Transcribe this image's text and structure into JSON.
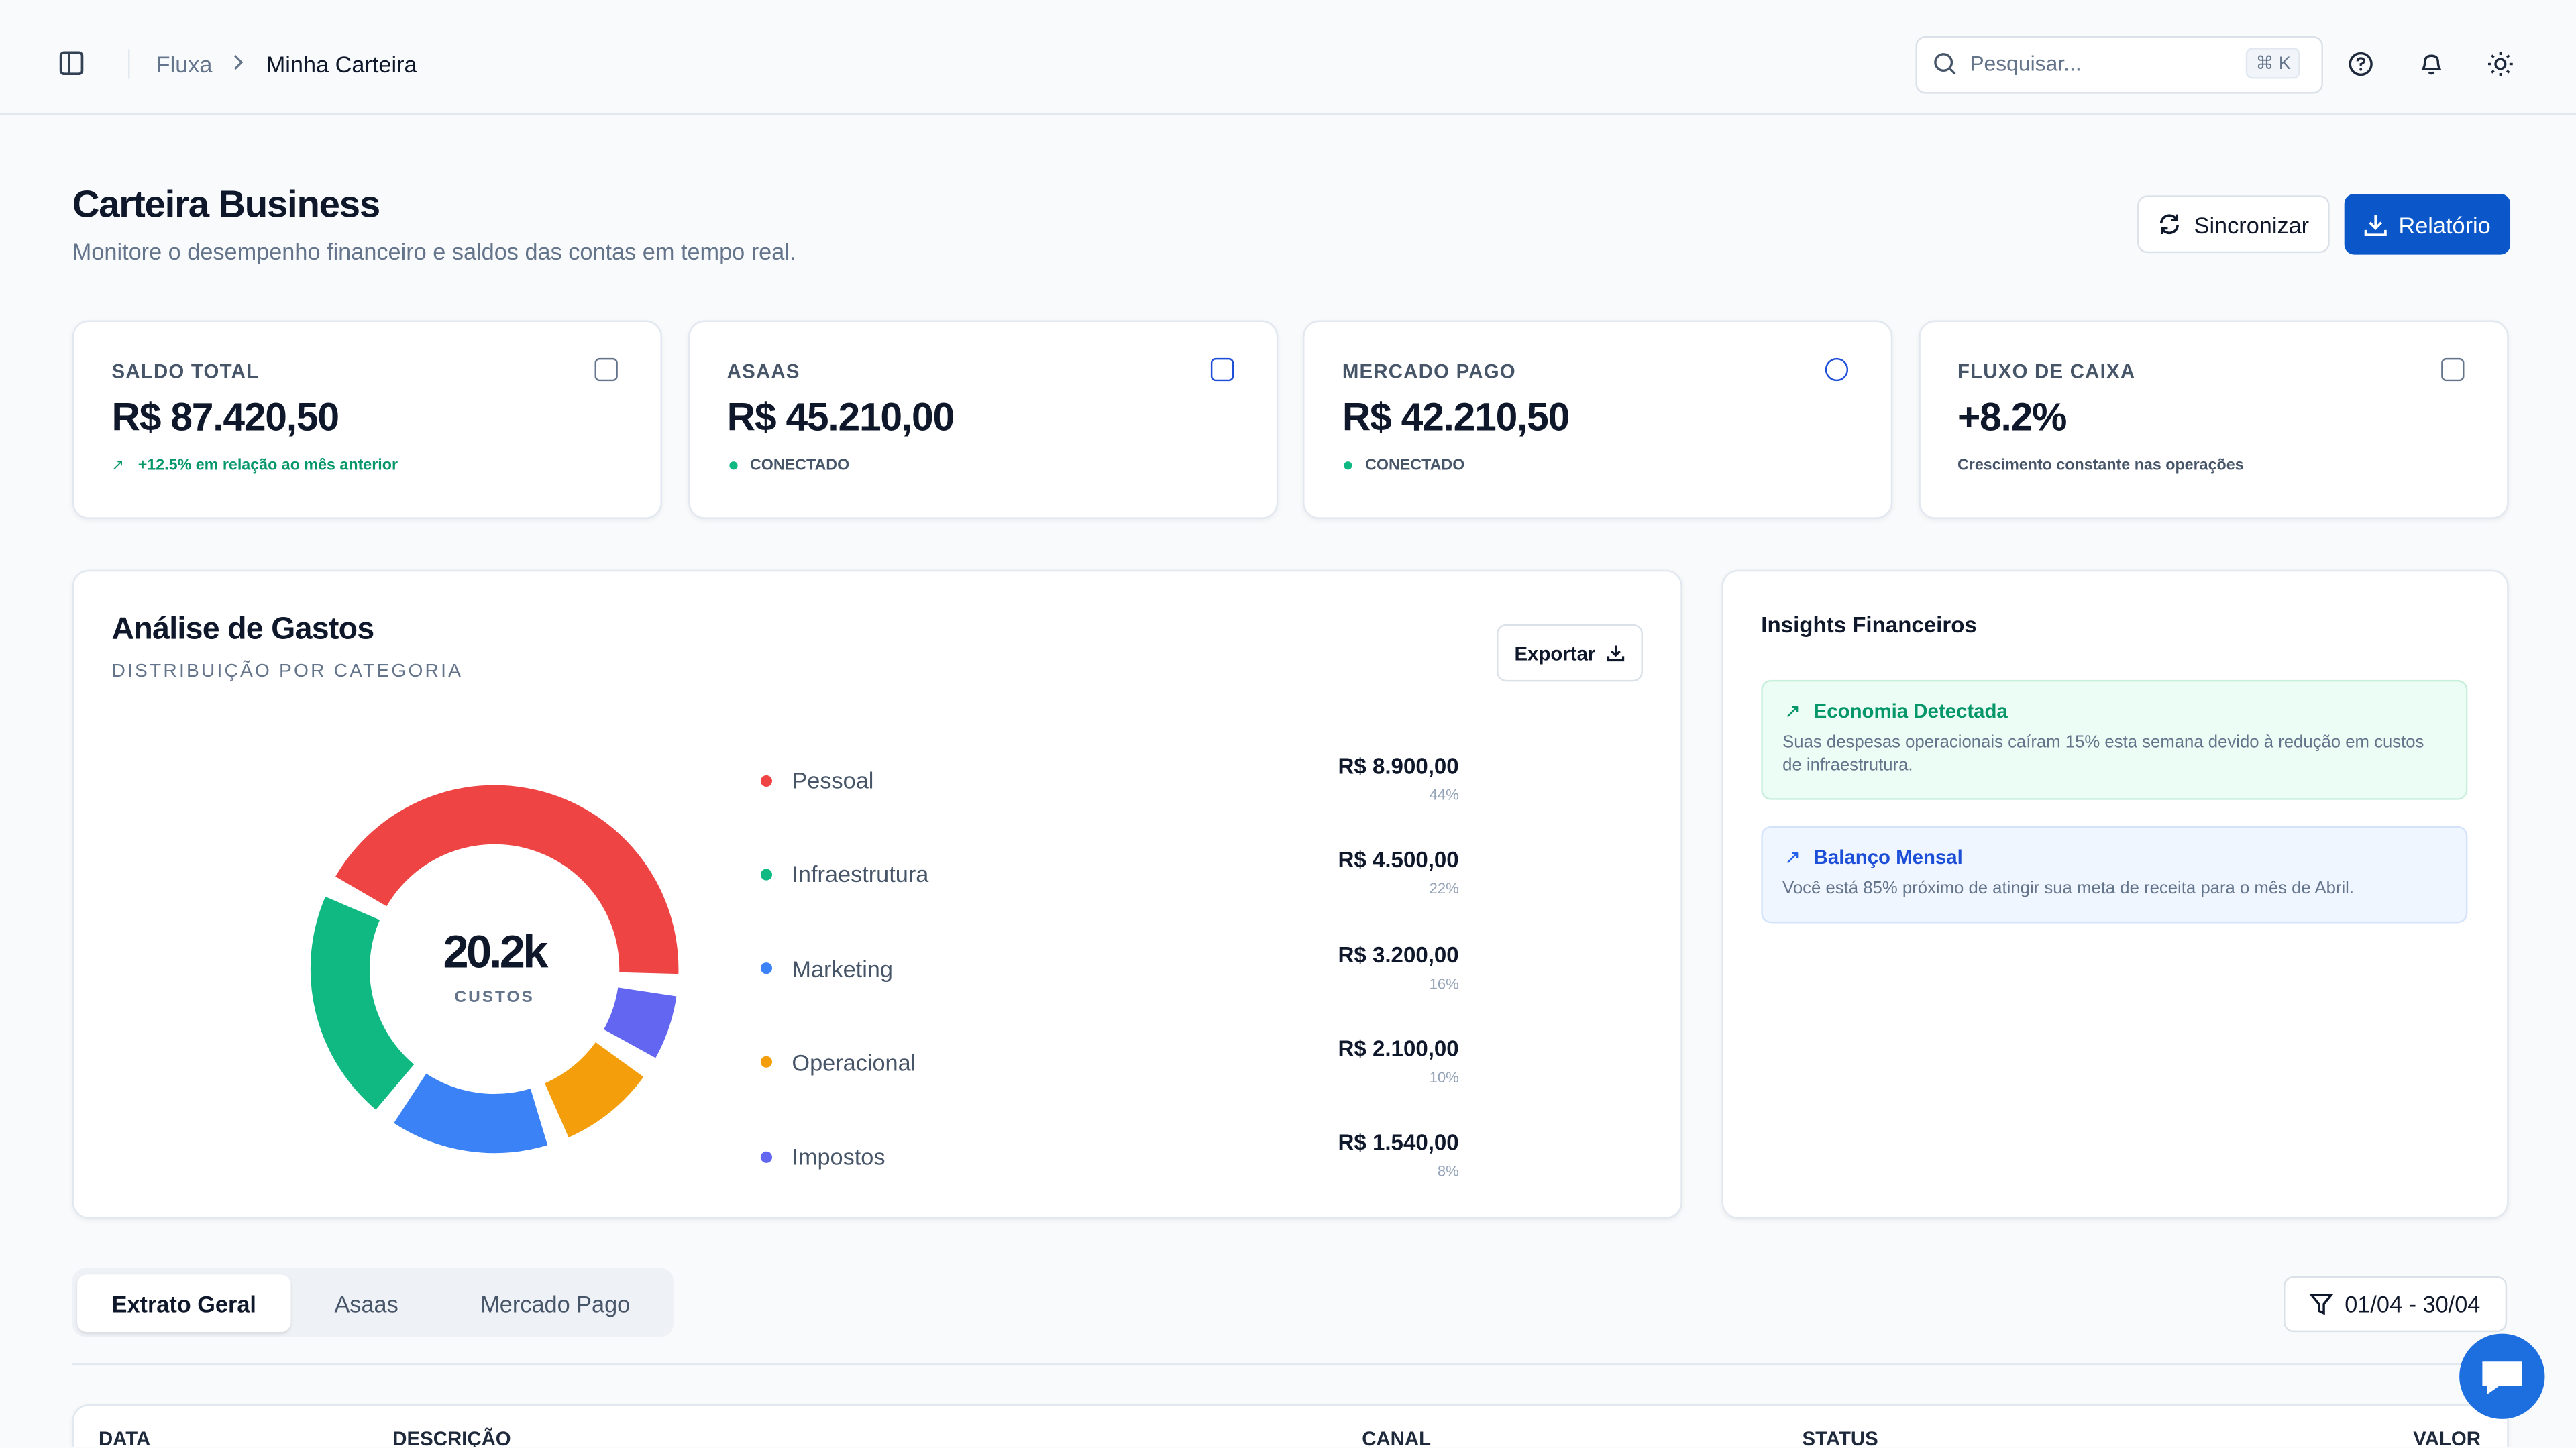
{
  "breadcrumb": [
    "Fluxa",
    "Minha Carteira"
  ],
  "search": {
    "placeholder": "Pesquisar...",
    "shortcut": "⌘ K"
  },
  "header": {
    "title": "Carteira Business",
    "subtitle": "Monitore o desempenho financeiro e saldos das contas em tempo real.",
    "buttons": [
      "Sincronizar",
      "Relatório"
    ]
  },
  "cards": [
    {
      "label": "SALDO TOTAL",
      "value": "R$ 87.420,50",
      "note": "+12.5% em relação ao mês anterior"
    },
    {
      "label": "ASAAS",
      "value": "R$ 45.210,00",
      "note": "CONECTADO"
    },
    {
      "label": "MERCADO PAGO",
      "value": "R$ 42.210,50",
      "note": "CONECTADO"
    },
    {
      "label": "FLUXO DE CAIXA",
      "value": "+8.2%",
      "note": "Crescimento constante nas operações"
    }
  ],
  "spending": {
    "type": "pie",
    "title": "Análise de Gastos",
    "subtitle": "DISTRIBUIÇÃO POR CATEGORIA",
    "export": "Exportar",
    "center_value": "20.2k",
    "center_label": "CUSTOS",
    "categories": [
      "Pessoal",
      "Infraestrutura",
      "Marketing",
      "Operacional",
      "Impostos"
    ],
    "values": [
      8900,
      4500,
      3200,
      2100,
      1540
    ],
    "value_labels": [
      "R$ 8.900,00",
      "R$ 4.500,00",
      "R$ 3.200,00",
      "R$ 2.100,00",
      "R$ 1.540,00"
    ],
    "percent_labels": [
      "44%",
      "22%",
      "16%",
      "10%",
      "8%"
    ],
    "colors": [
      "#ef4444",
      "#10b981",
      "#3b82f6",
      "#f59e0b",
      "#6366f1"
    ]
  },
  "insights": {
    "title": "Insights Financeiros",
    "items": [
      {
        "title": "Economia Detectada",
        "text": "Suas despesas operacionais caíram 15% esta semana devido à redução em custos de infraestrutura."
      },
      {
        "title": "Balanço Mensal",
        "text": "Você está 85% próximo de atingir sua meta de receita para o mês de Abril."
      }
    ]
  },
  "tabs": [
    "Extrato Geral",
    "Asaas",
    "Mercado Pago"
  ],
  "date_filter": "01/04 - 30/04",
  "table": {
    "columns": [
      "DATA",
      "DESCRIÇÃO",
      "CANAL",
      "STATUS",
      "VALOR"
    ]
  }
}
